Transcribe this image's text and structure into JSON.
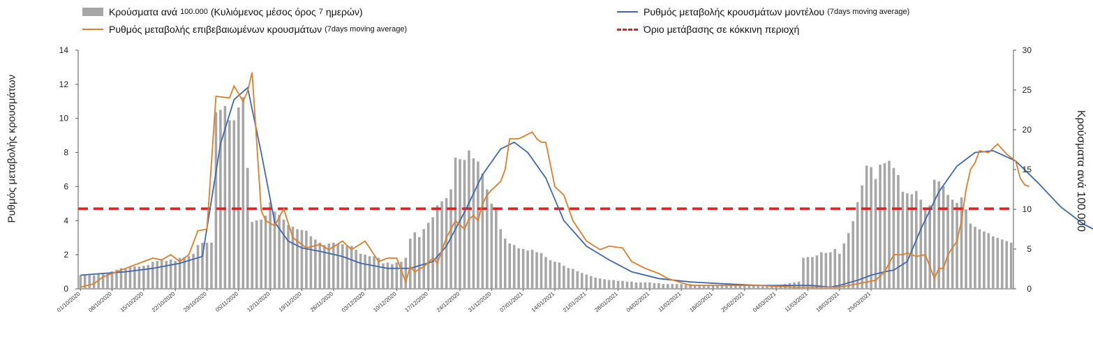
{
  "chart_data": {
    "type": "bar",
    "left_axis_title": "Ρυθμός μεταβολής κρουσμάτων",
    "right_axis_title": "Κρούσματα ανά 100.000",
    "left_ylim": [
      0,
      14
    ],
    "right_ylim": [
      0,
      30
    ],
    "left_ticks": [
      "0",
      "2",
      "4",
      "6",
      "8",
      "10",
      "12",
      "14"
    ],
    "right_ticks": [
      "0",
      "5",
      "10",
      "15",
      "20",
      "25",
      "30"
    ],
    "x_labels": [
      "01/10/2020",
      "08/10/2020",
      "15/10/2020",
      "22/10/2020",
      "29/10/2020",
      "05/11/2020",
      "12/11/2020",
      "19/11/2020",
      "26/11/2020",
      "03/12/2020",
      "10/12/2020",
      "17/12/2020",
      "24/12/2020",
      "31/12/2020",
      "07/01/2021",
      "14/01/2021",
      "21/01/2021",
      "28/01/2021",
      "04/02/2021",
      "11/02/2021",
      "18/02/2021",
      "25/02/2021",
      "04/03/2021",
      "11/03/2021",
      "18/03/2021",
      "25/03/2021"
    ],
    "threshold": 4.7,
    "legend": {
      "bars": "Κρούσματα ανά",
      "bars_small": "100.000",
      "bars_rest": "(Κυλιόμενος μέσος όρος",
      "bars_small2": "7",
      "bars_rest2": "ημερών)",
      "model": "Ρυθμός μεταβολής κρουσμάτων μοντέλου",
      "model_small": "(7days moving average)",
      "confirmed": "Ρυθμός μεταβολής επιβεβαιωμένων κρουσμάτων",
      "confirmed_small": "(7days moving average)",
      "threshold": "Όριο μετάβασης σε κόκκινη περιοχή"
    },
    "series": [
      {
        "name": "Κρούσματα ανά 100.000",
        "axis": "right",
        "values": [
          1.7,
          1.7,
          1.7,
          1.7,
          1.8,
          1.9,
          2.0,
          2.2,
          2.4,
          2.6,
          2.6,
          2.7,
          2.8,
          2.8,
          2.9,
          3.0,
          3.4,
          3.5,
          3.6,
          3.5,
          3.7,
          3.5,
          3.9,
          4.0,
          4.1,
          4.4,
          5.5,
          5.8,
          5.8,
          5.8,
          22.2,
          22.5,
          23.0,
          21.2,
          21.2,
          22.8,
          24.1,
          15.2,
          8.4,
          8.6,
          8.7,
          9.2,
          10.9,
          9.7,
          9.3,
          8.7,
          8.0,
          7.8,
          7.5,
          7.4,
          7.3,
          6.6,
          6.2,
          5.8,
          5.5,
          5.7,
          5.8,
          5.6,
          5.6,
          5.4,
          5.4,
          4.9,
          4.4,
          4.3,
          4.1,
          4.1,
          3.9,
          3.2,
          3.3,
          3.1,
          3.3,
          3.4,
          3.9,
          6.3,
          7.1,
          6.5,
          7.5,
          8.3,
          9.0,
          10.5,
          11.0,
          11.4,
          12.5,
          16.5,
          16.3,
          16.2,
          17.4,
          16.4,
          16.0,
          14.5,
          12.5,
          10.7,
          10.0,
          7.5,
          6.3,
          5.7,
          5.5,
          5.1,
          5.0,
          4.8,
          4.9,
          4.6,
          4.5,
          4.0,
          3.6,
          3.4,
          3.3,
          2.9,
          2.6,
          2.5,
          2.2,
          2.0,
          1.8,
          1.6,
          1.4,
          1.3,
          1.2,
          1.1,
          1.1,
          1.0,
          1.0,
          0.9,
          0.9,
          0.8,
          0.8,
          0.8,
          0.8,
          0.7,
          0.7,
          0.6,
          0.6,
          0.6,
          0.6,
          0.6,
          0.5,
          0.6,
          0.5,
          0.5,
          0.5,
          0.5,
          0.5,
          0.5,
          0.5,
          0.5,
          0.6,
          0.5,
          0.5,
          0.5,
          0.5,
          0.4,
          0.4,
          0.3,
          0.3,
          0.3,
          0.4,
          0.5,
          0.6,
          0.7,
          0.8,
          0.9,
          3.9,
          4.0,
          4.0,
          4.2,
          4.6,
          4.5,
          4.6,
          5.0,
          4.4,
          5.7,
          7.0,
          8.5,
          10.9,
          13.0,
          15.5,
          15.3,
          13.8,
          15.6,
          15.8,
          16.1,
          15.2,
          14.3,
          12.2,
          12.0,
          11.9,
          12.3,
          11.2,
          10.2,
          10.5,
          13.7,
          13.5,
          12.9,
          11.8,
          11.2,
          10.8,
          11.5,
          10.0,
          8.2,
          7.8,
          7.5,
          7.2,
          7.0,
          6.6,
          6.4,
          6.2,
          6.0,
          5.8
        ]
      },
      {
        "name": "Ρυθμός μεταβολής κρουσμάτων μοντέλου",
        "axis": "left",
        "x": [
          0,
          5,
          10,
          16,
          22,
          27,
          31,
          34,
          37,
          40,
          43,
          46,
          49,
          53,
          58,
          62,
          68,
          73,
          78,
          81,
          85,
          89,
          93,
          96,
          99,
          103,
          107,
          112,
          117,
          122,
          128,
          135,
          142,
          150,
          158,
          162,
          166,
          168,
          172,
          175,
          178,
          180,
          183,
          186,
          190,
          194,
          198,
          202,
          207,
          212,
          217,
          222,
          228
        ],
        "values": [
          0.8,
          0.9,
          1.0,
          1.2,
          1.5,
          1.9,
          8.5,
          11.1,
          11.8,
          8.0,
          3.9,
          2.8,
          2.4,
          2.2,
          1.9,
          1.5,
          1.2,
          1.2,
          1.6,
          2.5,
          4.5,
          6.7,
          8.2,
          8.6,
          8.0,
          6.5,
          4.0,
          2.5,
          1.7,
          1.0,
          0.6,
          0.4,
          0.3,
          0.2,
          0.2,
          0.2,
          0.1,
          0.2,
          0.5,
          0.8,
          1.0,
          1.1,
          1.6,
          3.5,
          5.7,
          7.2,
          8.0,
          8.1,
          7.5,
          6.2,
          4.8,
          3.8,
          3.0
        ]
      },
      {
        "name": "Ρυθμός μεταβολής επιβεβαιωμένων κρουσμάτων",
        "axis": "left",
        "x": [
          0,
          3,
          5,
          8,
          10,
          14,
          16,
          18,
          20,
          22,
          24,
          26,
          28,
          30,
          33,
          34,
          36,
          37,
          38,
          40,
          41,
          43,
          45,
          47,
          50,
          53,
          55,
          58,
          60,
          63,
          66,
          68,
          70,
          72,
          73,
          74,
          76,
          78,
          79,
          81,
          83,
          85,
          86,
          87,
          88,
          89,
          90,
          91,
          93,
          94,
          95,
          97,
          100,
          101,
          102,
          103,
          105,
          107,
          109,
          112,
          115,
          117,
          120,
          122,
          125,
          128,
          130,
          135,
          140,
          145,
          150,
          158,
          162,
          166,
          168,
          172,
          174,
          176,
          178,
          180,
          182,
          183,
          184,
          185,
          187,
          189,
          190,
          191,
          192,
          194,
          195,
          196,
          197,
          198,
          199,
          201,
          203,
          205,
          207,
          208,
          209,
          210
        ],
        "values": [
          0.1,
          0.3,
          0.7,
          1.0,
          1.2,
          1.6,
          1.8,
          1.7,
          2.0,
          1.6,
          2.0,
          3.4,
          3.5,
          11.3,
          11.2,
          11.9,
          11.0,
          11.6,
          12.7,
          4.6,
          4.0,
          3.7,
          4.7,
          3.0,
          2.4,
          2.6,
          2.3,
          2.8,
          2.3,
          2.8,
          1.6,
          1.8,
          1.8,
          0.4,
          1.3,
          1.0,
          1.3,
          1.8,
          1.5,
          3.0,
          4.0,
          3.5,
          4.1,
          4.3,
          4.0,
          5.0,
          5.5,
          5.8,
          6.3,
          7.0,
          8.8,
          8.8,
          9.2,
          8.8,
          8.6,
          8.6,
          6.0,
          5.5,
          4.0,
          2.8,
          2.3,
          2.5,
          2.4,
          1.6,
          1.2,
          0.9,
          0.6,
          0.2,
          0.2,
          0.2,
          0.2,
          0.1,
          0.1,
          0.1,
          0.1,
          0.3,
          0.4,
          0.5,
          1.0,
          2.0,
          2.0,
          2.1,
          2.0,
          1.9,
          2.0,
          0.6,
          1.2,
          1.2,
          2.0,
          2.8,
          4.0,
          5.8,
          7.0,
          7.4,
          8.1,
          8.0,
          8.5,
          7.9,
          7.5,
          6.5,
          6.1,
          6.0
        ]
      }
    ]
  }
}
